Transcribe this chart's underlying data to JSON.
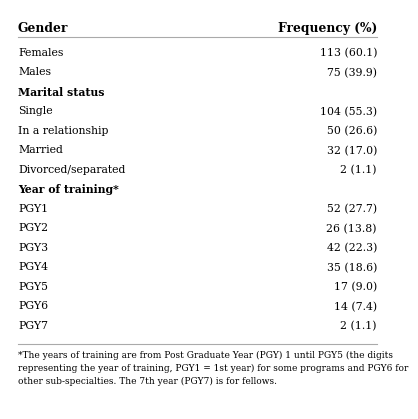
{
  "col1_header": "Gender",
  "col2_header": "Frequency (%)",
  "rows": [
    {
      "label": "Females",
      "value": "113 (60.1)",
      "bold": false
    },
    {
      "label": "Males",
      "value": "75 (39.9)",
      "bold": false
    },
    {
      "label": "Marital status",
      "value": "",
      "bold": true
    },
    {
      "label": "Single",
      "value": "104 (55.3)",
      "bold": false
    },
    {
      "label": "In a relationship",
      "value": "50 (26.6)",
      "bold": false
    },
    {
      "label": "Married",
      "value": "32 (17.0)",
      "bold": false
    },
    {
      "label": "Divorced/separated",
      "value": "2 (1.1)",
      "bold": false
    },
    {
      "label": "Year of training*",
      "value": "",
      "bold": true
    },
    {
      "label": "PGY1",
      "value": "52 (27.7)",
      "bold": false
    },
    {
      "label": "PGY2",
      "value": "26 (13.8)",
      "bold": false
    },
    {
      "label": "PGY3",
      "value": "42 (22.3)",
      "bold": false
    },
    {
      "label": "PGY4",
      "value": "35 (18.6)",
      "bold": false
    },
    {
      "label": "PGY5",
      "value": "17 (9.0)",
      "bold": false
    },
    {
      "label": "PGY6",
      "value": "14 (7.4)",
      "bold": false
    },
    {
      "label": "PGY7",
      "value": "2 (1.1)",
      "bold": false
    }
  ],
  "footnote_line1": "*The years of training are from Post Graduate Year (PGY) 1 until PGY5 (the digits",
  "footnote_line2": "representing the year of training, PGY1 = 1st year) for some programs and PGY6 for",
  "footnote_line3": "other sub-specialties. The 7th year (PGY7) is for fellows.",
  "bg_color": "#ffffff",
  "text_color": "#000000",
  "line_color": "#aaaaaa",
  "font_size": 7.8,
  "header_font_size": 8.8,
  "footnote_font_size": 6.5
}
